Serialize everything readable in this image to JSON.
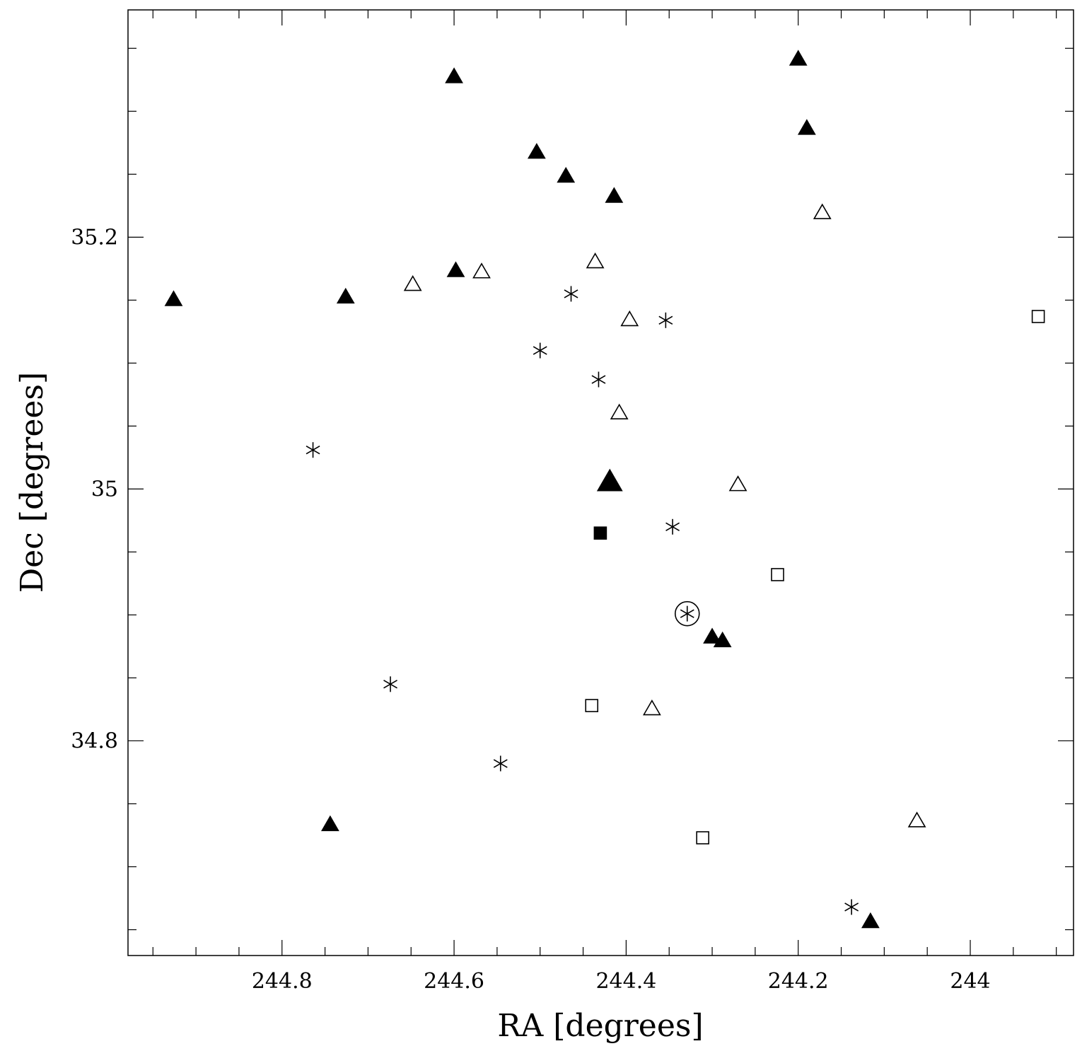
{
  "chart_data": {
    "type": "scatter",
    "title": "",
    "xlabel": "RA [degrees]",
    "ylabel": "Dec [degrees]",
    "x_reversed": true,
    "xlim": [
      244.979,
      243.88
    ],
    "ylim": [
      34.6295,
      35.3805
    ],
    "x_major_ticks": [
      244.8,
      244.6,
      244.4,
      244.2,
      244
    ],
    "x_tick_labels": [
      "244.8",
      "244.6",
      "244.4",
      "244.2",
      "244"
    ],
    "x_minor_step": 0.05,
    "y_major_ticks": [
      34.8,
      35.0,
      35.2
    ],
    "y_tick_labels": [
      "34.8",
      "35",
      "35.2"
    ],
    "y_minor_step": 0.05,
    "grid": false,
    "legend": "none",
    "marker_color": "#000000",
    "series": [
      {
        "marker": "filled-triangle",
        "points": [
          {
            "x": 244.6,
            "y": 35.327
          },
          {
            "x": 244.2,
            "y": 35.341
          },
          {
            "x": 244.19,
            "y": 35.286
          },
          {
            "x": 244.504,
            "y": 35.267
          },
          {
            "x": 244.47,
            "y": 35.248
          },
          {
            "x": 244.414,
            "y": 35.232
          },
          {
            "x": 244.598,
            "y": 35.173
          },
          {
            "x": 244.926,
            "y": 35.15
          },
          {
            "x": 244.726,
            "y": 35.152
          },
          {
            "x": 244.3,
            "y": 34.882
          },
          {
            "x": 244.288,
            "y": 34.879
          },
          {
            "x": 244.744,
            "y": 34.733
          },
          {
            "x": 244.116,
            "y": 34.656
          }
        ]
      },
      {
        "marker": "large-filled-triangle",
        "points": [
          {
            "x": 244.419,
            "y": 35.005
          }
        ]
      },
      {
        "marker": "open-triangle",
        "points": [
          {
            "x": 244.172,
            "y": 35.219
          },
          {
            "x": 244.436,
            "y": 35.18
          },
          {
            "x": 244.568,
            "y": 35.172
          },
          {
            "x": 244.648,
            "y": 35.162
          },
          {
            "x": 244.396,
            "y": 35.134
          },
          {
            "x": 244.408,
            "y": 35.06
          },
          {
            "x": 244.27,
            "y": 35.003
          },
          {
            "x": 244.37,
            "y": 34.825
          },
          {
            "x": 244.062,
            "y": 34.736
          }
        ]
      },
      {
        "marker": "asterisk",
        "points": [
          {
            "x": 244.464,
            "y": 35.155
          },
          {
            "x": 244.354,
            "y": 35.134
          },
          {
            "x": 244.5,
            "y": 35.11
          },
          {
            "x": 244.432,
            "y": 35.087
          },
          {
            "x": 244.764,
            "y": 35.031
          },
          {
            "x": 244.346,
            "y": 34.97
          },
          {
            "x": 244.674,
            "y": 34.845
          },
          {
            "x": 244.546,
            "y": 34.782
          },
          {
            "x": 244.138,
            "y": 34.668
          }
        ]
      },
      {
        "marker": "circled-asterisk",
        "points": [
          {
            "x": 244.329,
            "y": 34.901
          }
        ]
      },
      {
        "marker": "open-square",
        "points": [
          {
            "x": 243.921,
            "y": 35.137
          },
          {
            "x": 244.224,
            "y": 34.932
          },
          {
            "x": 244.44,
            "y": 34.828
          },
          {
            "x": 244.311,
            "y": 34.723
          }
        ]
      },
      {
        "marker": "filled-square",
        "points": [
          {
            "x": 244.43,
            "y": 34.965
          }
        ]
      }
    ]
  }
}
